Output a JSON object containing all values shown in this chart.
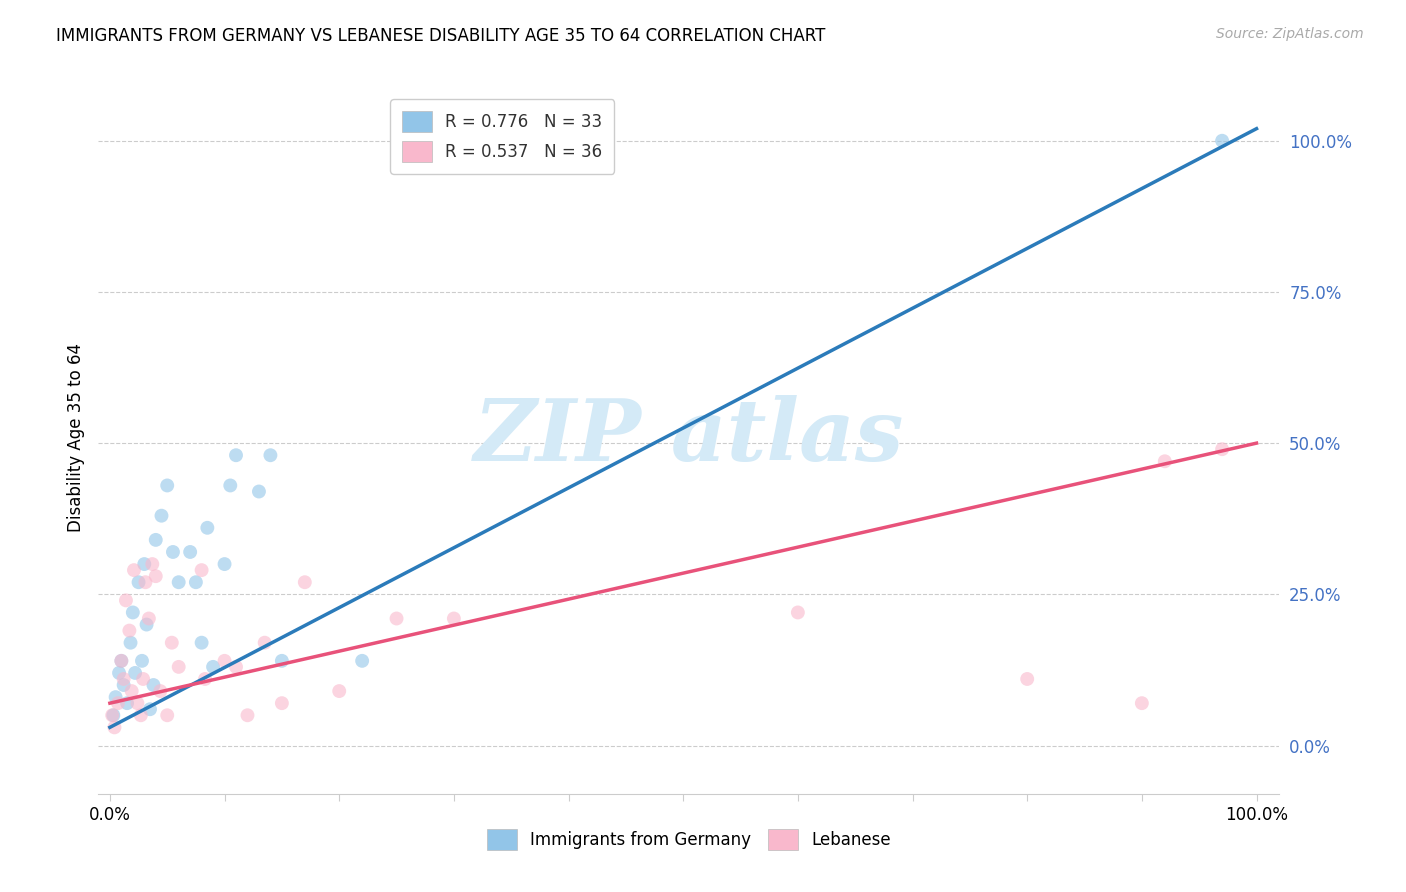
{
  "title": "IMMIGRANTS FROM GERMANY VS LEBANESE DISABILITY AGE 35 TO 64 CORRELATION CHART",
  "source": "Source: ZipAtlas.com",
  "ylabel": "Disability Age 35 to 64",
  "legend1_r": "R = 0.776",
  "legend1_n": "N = 33",
  "legend2_r": "R = 0.537",
  "legend2_n": "N = 36",
  "legend_label1": "Immigrants from Germany",
  "legend_label2": "Lebanese",
  "ytick_values": [
    0,
    25,
    50,
    75,
    100
  ],
  "xtick_values": [
    0,
    10,
    20,
    30,
    40,
    50,
    60,
    70,
    80,
    90,
    100
  ],
  "xlim": [
    -1,
    102
  ],
  "ylim": [
    -8,
    110
  ],
  "blue_scatter_color": "#92c5e8",
  "pink_scatter_color": "#f9b8cc",
  "blue_line_color": "#2b7bba",
  "pink_line_color": "#e8527a",
  "scatter_alpha": 0.6,
  "scatter_size": 100,
  "germany_x": [
    0.3,
    0.5,
    0.8,
    1.0,
    1.2,
    1.5,
    1.8,
    2.0,
    2.2,
    2.5,
    2.8,
    3.0,
    3.2,
    3.5,
    3.8,
    4.0,
    4.5,
    5.0,
    5.5,
    6.0,
    7.0,
    7.5,
    8.0,
    8.5,
    9.0,
    10.0,
    10.5,
    11.0,
    13.0,
    14.0,
    15.0,
    22.0,
    97.0
  ],
  "germany_y": [
    5,
    8,
    12,
    14,
    10,
    7,
    17,
    22,
    12,
    27,
    14,
    30,
    20,
    6,
    10,
    34,
    38,
    43,
    32,
    27,
    32,
    27,
    17,
    36,
    13,
    30,
    43,
    48,
    42,
    48,
    14,
    14,
    100
  ],
  "lebanese_x": [
    0.2,
    0.4,
    0.7,
    1.0,
    1.2,
    1.4,
    1.7,
    1.9,
    2.1,
    2.4,
    2.7,
    2.9,
    3.1,
    3.4,
    3.7,
    4.0,
    4.4,
    5.0,
    5.4,
    6.0,
    8.0,
    8.3,
    10.0,
    11.0,
    12.0,
    13.5,
    15.0,
    17.0,
    20.0,
    25.0,
    30.0,
    60.0,
    80.0,
    90.0,
    92.0,
    97.0
  ],
  "lebanese_y": [
    5,
    3,
    7,
    14,
    11,
    24,
    19,
    9,
    29,
    7,
    5,
    11,
    27,
    21,
    30,
    28,
    9,
    5,
    17,
    13,
    29,
    11,
    14,
    13,
    5,
    17,
    7,
    27,
    9,
    21,
    21,
    22,
    11,
    7,
    47,
    49
  ],
  "germany_trend_x": [
    0,
    100
  ],
  "germany_trend_y": [
    3,
    102
  ],
  "lebanese_trend_x": [
    0,
    100
  ],
  "lebanese_trend_y": [
    7,
    50
  ],
  "watermark_color": "#d4eaf7",
  "grid_color": "#cccccc",
  "right_tick_color": "#4472c4"
}
